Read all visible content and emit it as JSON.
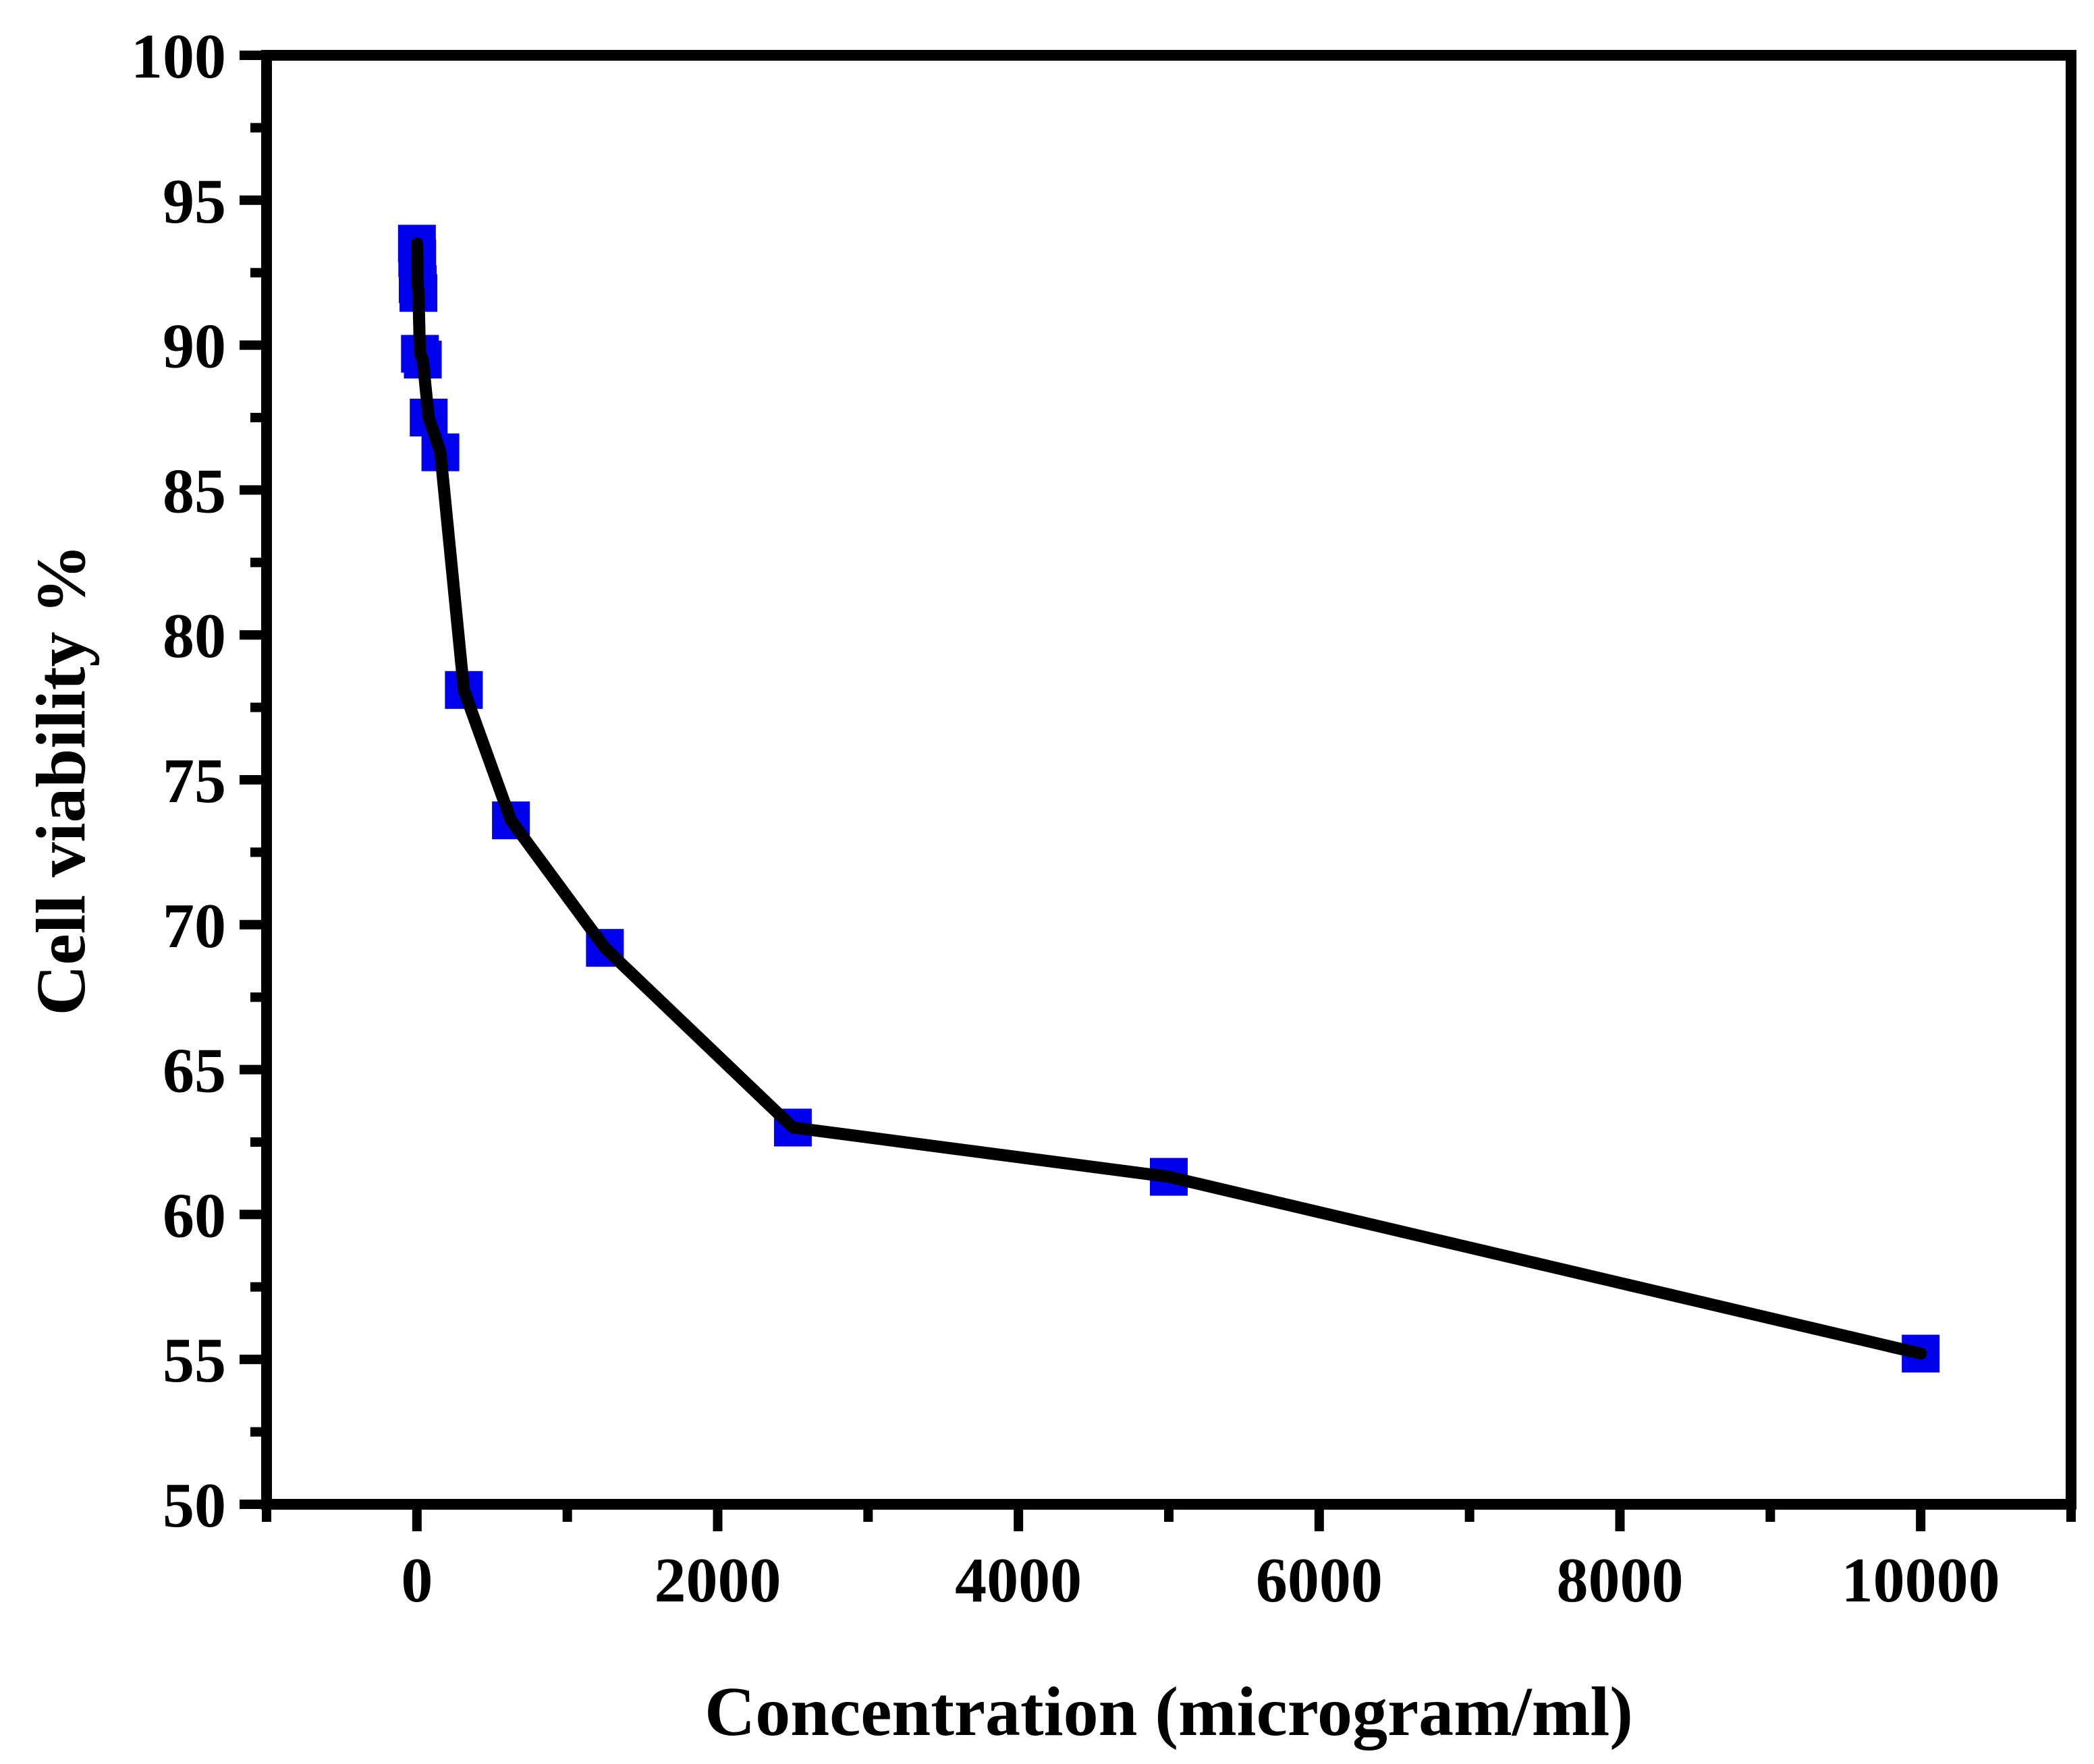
{
  "chart_data": {
    "type": "line",
    "title": "",
    "xlabel": "Concentration (microgram/ml)",
    "ylabel": "Cell viability %",
    "xlim": [
      -1000,
      11000
    ],
    "ylim": [
      50,
      100
    ],
    "x_ticks": [
      0,
      2000,
      4000,
      6000,
      8000,
      10000
    ],
    "x_tick_labels": [
      "0",
      "2000",
      "4000",
      "6000",
      "8000",
      "10000"
    ],
    "x_minor_ticks": [
      -1000,
      1000,
      3000,
      5000,
      7000,
      9000,
      11000
    ],
    "y_ticks": [
      50,
      55,
      60,
      65,
      70,
      75,
      80,
      85,
      90,
      95,
      100
    ],
    "y_tick_labels": [
      "50",
      "55",
      "60",
      "65",
      "70",
      "75",
      "80",
      "85",
      "90",
      "95",
      "100"
    ],
    "y_minor_ticks": [
      52.5,
      57.5,
      62.5,
      67.5,
      72.5,
      77.5,
      82.5,
      87.5,
      92.5,
      97.5
    ],
    "grid": false,
    "legend": "none",
    "series": [
      {
        "name": "Cell viability",
        "marker": "square",
        "marker_color": "#0000ee",
        "line_color": "#000000",
        "x": [
          0,
          2,
          5,
          10,
          20,
          39,
          78,
          156,
          312,
          625,
          1250,
          2500,
          5000,
          10000
        ],
        "y": [
          93.5,
          93.0,
          92.1,
          91.8,
          89.7,
          89.5,
          87.5,
          86.3,
          78.1,
          73.6,
          69.2,
          63.0,
          61.3,
          55.2
        ]
      }
    ]
  }
}
